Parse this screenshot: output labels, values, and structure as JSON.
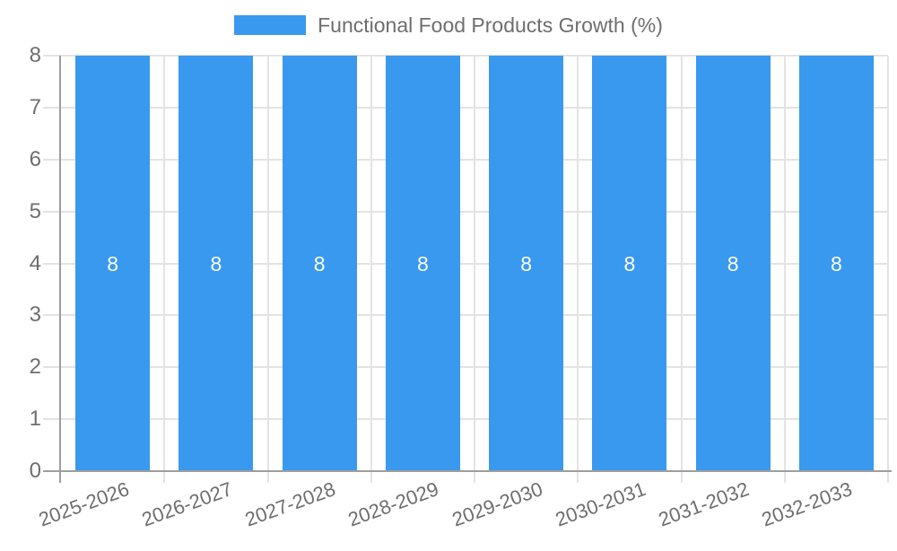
{
  "chart_data": {
    "type": "bar",
    "title": "Functional Food Products Growth (%)",
    "categories": [
      "2025-2026",
      "2026-2027",
      "2027-2028",
      "2028-2029",
      "2029-2030",
      "2030-2031",
      "2031-2032",
      "2032-2033"
    ],
    "values": [
      8,
      8,
      8,
      8,
      8,
      8,
      8,
      8
    ],
    "value_labels": [
      "8",
      "8",
      "8",
      "8",
      "8",
      "8",
      "8",
      "8"
    ],
    "xlabel": "",
    "ylabel": "",
    "ylim": [
      0,
      8
    ],
    "yticks": [
      0,
      1,
      2,
      3,
      4,
      5,
      6,
      7,
      8
    ],
    "grid": true,
    "legend_position": "top",
    "colors": {
      "bar": "#3999ee",
      "grid": "#e3e3e3",
      "axis": "#9e9e9e",
      "text": "#6e6e6e",
      "value_label": "#ffffff",
      "background": "#ffffff"
    }
  }
}
